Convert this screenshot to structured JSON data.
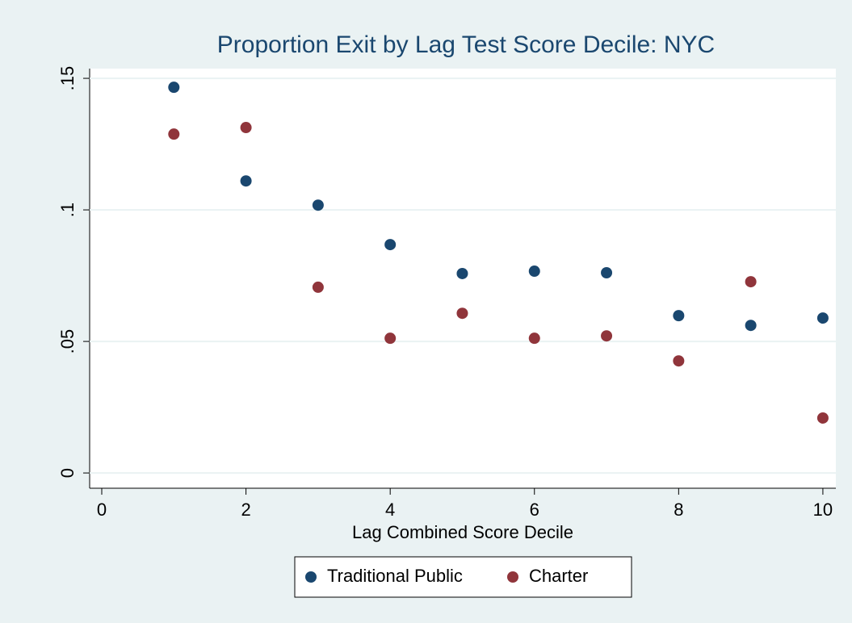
{
  "chart_data": {
    "type": "scatter",
    "title": "Proportion Exit by Lag Test Score Decile: NYC",
    "x_label": "Lag Combined Score Decile",
    "x": [
      1,
      2,
      3,
      4,
      5,
      6,
      7,
      8,
      9,
      10
    ],
    "series": [
      {
        "name": "Traditional Public",
        "color": "#1a476f",
        "values": [
          0.1466,
          0.111,
          0.1018,
          0.0868,
          0.0758,
          0.0767,
          0.0761,
          0.0598,
          0.0561,
          0.0589
        ]
      },
      {
        "name": "Charter",
        "color": "#90353b",
        "values": [
          0.1288,
          0.1313,
          0.0706,
          0.0512,
          0.0607,
          0.0512,
          0.0521,
          0.0426,
          0.0727,
          0.0209
        ]
      }
    ],
    "xlim": [
      -0.168,
      10.18
    ],
    "ylim": [
      -0.0058,
      0.1537
    ],
    "xticks": [
      0,
      2,
      4,
      6,
      8,
      10
    ],
    "yticks": [
      0,
      {
        "value": 0.05,
        "label": ".05"
      },
      {
        "value": 0.1,
        "label": ".1"
      },
      {
        "value": 0.15,
        "label": ".15"
      }
    ],
    "grid": true,
    "legend": "bottom"
  }
}
